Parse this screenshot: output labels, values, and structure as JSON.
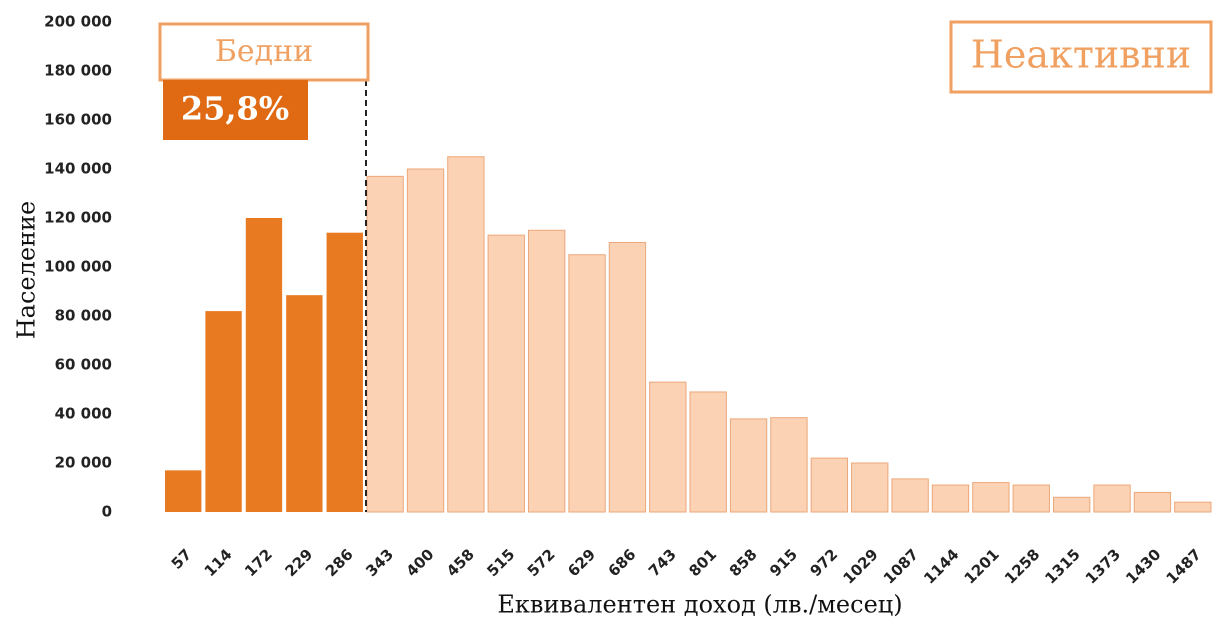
{
  "chart_data": {
    "type": "bar",
    "x_label": "Еквивалентен доход (лв./месец)",
    "y_label": "Население",
    "categories": [
      "57",
      "114",
      "172",
      "229",
      "286",
      "343",
      "400",
      "458",
      "515",
      "572",
      "629",
      "686",
      "743",
      "801",
      "858",
      "915",
      "972",
      "1029",
      "1087",
      "1144",
      "1201",
      "1258",
      "1315",
      "1373",
      "1430",
      "1487"
    ],
    "values": [
      17000,
      82000,
      120000,
      88500,
      114000,
      137000,
      140000,
      145000,
      113000,
      115000,
      105000,
      110000,
      53000,
      49000,
      38000,
      38500,
      22000,
      20000,
      13500,
      11000,
      12000,
      11000,
      6000,
      11000,
      8000,
      4000
    ],
    "colors": [
      "#e87a22",
      "#e87a22",
      "#e87a22",
      "#e87a22",
      "#e87a22",
      "#fcd2b4",
      "#fcd2b4",
      "#fcd2b4",
      "#fcd2b4",
      "#fcd2b4",
      "#fcd2b4",
      "#fcd2b4",
      "#fcd2b4",
      "#fcd2b4",
      "#fcd2b4",
      "#fcd2b4",
      "#fcd2b4",
      "#fcd2b4",
      "#fcd2b4",
      "#fcd2b4",
      "#fcd2b4",
      "#fcd2b4",
      "#fcd2b4",
      "#fcd2b4",
      "#fcd2b4",
      "#fcd2b4"
    ],
    "ylim": [
      0,
      200000
    ],
    "yticks": [
      0,
      {
        "value": 20000,
        "label": "20 000"
      },
      {
        "value": 40000,
        "label": "40 000"
      },
      {
        "value": 60000,
        "label": "60 000"
      },
      {
        "value": 80000,
        "label": "80 000"
      },
      {
        "value": 100000,
        "label": "100 000"
      },
      {
        "value": 120000,
        "label": "120 000"
      },
      {
        "value": 140000,
        "label": "140 000"
      },
      {
        "value": 160000,
        "label": "160 000"
      },
      {
        "value": 180000,
        "label": "180 000"
      },
      {
        "value": 200000,
        "label": "200 000"
      }
    ],
    "grid": false,
    "annotations": {
      "poor": "Бедни",
      "poor_share": "25,8%",
      "inactive": "Неактивни"
    }
  }
}
